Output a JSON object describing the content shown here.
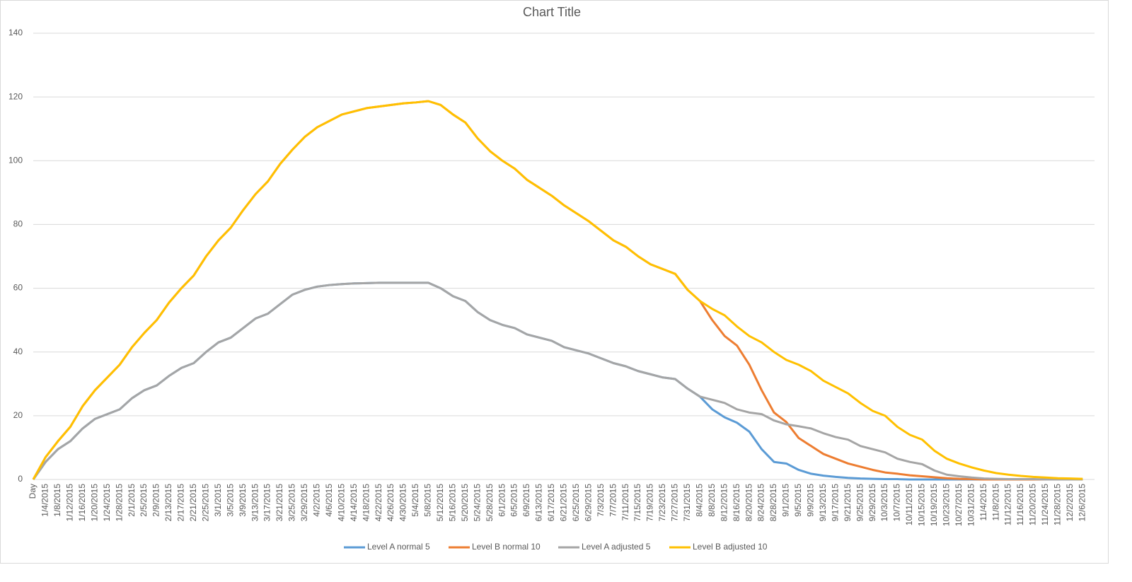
{
  "chart_data": {
    "type": "line",
    "title": "Chart Title",
    "categories": [
      "Day",
      "1/4/2015",
      "1/8/2015",
      "1/12/2015",
      "1/16/2015",
      "1/20/2015",
      "1/24/2015",
      "1/28/2015",
      "2/1/2015",
      "2/5/2015",
      "2/9/2015",
      "2/13/2015",
      "2/17/2015",
      "2/21/2015",
      "2/25/2015",
      "3/1/2015",
      "3/5/2015",
      "3/9/2015",
      "3/13/2015",
      "3/17/2015",
      "3/21/2015",
      "3/25/2015",
      "3/29/2015",
      "4/2/2015",
      "4/6/2015",
      "4/10/2015",
      "4/14/2015",
      "4/18/2015",
      "4/22/2015",
      "4/26/2015",
      "4/30/2015",
      "5/4/2015",
      "5/8/2015",
      "5/12/2015",
      "5/16/2015",
      "5/20/2015",
      "5/24/2015",
      "5/28/2015",
      "6/1/2015",
      "6/5/2015",
      "6/9/2015",
      "6/13/2015",
      "6/17/2015",
      "6/21/2015",
      "6/25/2015",
      "6/29/2015",
      "7/3/2015",
      "7/7/2015",
      "7/11/2015",
      "7/15/2015",
      "7/19/2015",
      "7/23/2015",
      "7/27/2015",
      "7/31/2015",
      "8/4/2015",
      "8/8/2015",
      "8/12/2015",
      "8/16/2015",
      "8/20/2015",
      "8/24/2015",
      "8/28/2015",
      "9/1/2015",
      "9/5/2015",
      "9/9/2015",
      "9/13/2015",
      "9/17/2015",
      "9/21/2015",
      "9/25/2015",
      "9/29/2015",
      "10/3/2015",
      "10/7/2015",
      "10/11/2015",
      "10/15/2015",
      "10/19/2015",
      "10/23/2015",
      "10/27/2015",
      "10/31/2015",
      "11/4/2015",
      "11/8/2015",
      "11/12/2015",
      "11/16/2015",
      "11/20/2015",
      "11/24/2015",
      "11/28/2015",
      "12/2/2015",
      "12/6/2015"
    ],
    "series": [
      {
        "name": "Level A normal 5",
        "color": "#5b9bd5",
        "values": [
          0,
          5.5,
          9.5,
          12,
          16,
          19,
          20.5,
          22,
          25.5,
          28,
          29.5,
          32.5,
          35,
          36.5,
          40,
          43,
          44.5,
          47.5,
          50.5,
          52,
          55,
          58,
          59.5,
          60.5,
          61,
          61.3,
          61.5,
          61.6,
          61.7,
          61.7,
          61.7,
          61.7,
          61.7,
          60,
          57.5,
          56,
          52.5,
          50,
          48.5,
          47.5,
          45.5,
          44.5,
          43.5,
          41.5,
          40.5,
          39.5,
          38,
          36.5,
          35.5,
          34,
          33,
          32,
          31.5,
          28.5,
          26,
          22,
          19.5,
          17.8,
          15,
          9.5,
          5.5,
          5,
          3,
          1.8,
          1.2,
          0.8,
          0.5,
          0.3,
          0.2,
          0.1,
          0.1,
          0,
          0,
          0,
          0,
          0,
          0,
          0,
          0,
          0,
          0,
          0,
          0,
          0,
          0,
          0
        ]
      },
      {
        "name": "Level B normal 10",
        "color": "#ed7d31",
        "values": [
          0,
          7,
          12,
          16.5,
          23,
          28,
          32,
          36,
          41.5,
          46,
          50,
          55.5,
          60,
          64,
          70,
          75,
          79,
          84.5,
          89.5,
          93.5,
          99,
          103.5,
          107.5,
          110.5,
          112.5,
          114.5,
          115.5,
          116.5,
          117,
          117.5,
          118,
          118.3,
          118.7,
          117.5,
          114.5,
          112,
          107,
          103,
          100,
          97.5,
          94,
          91.5,
          89,
          86,
          83.5,
          81,
          78,
          75,
          73,
          70,
          67.5,
          66,
          64.5,
          59.5,
          56,
          50,
          45,
          42,
          36,
          28,
          21,
          18,
          13,
          10.5,
          8,
          6.5,
          5,
          4,
          3,
          2.2,
          1.8,
          1.3,
          1,
          0.7,
          0.4,
          0.2,
          0.1,
          0,
          0,
          0,
          0,
          0,
          0,
          0,
          0,
          0
        ]
      },
      {
        "name": "Level A adjusted 5",
        "color": "#a5a5a5",
        "values": [
          0,
          5.5,
          9.5,
          12,
          16,
          19,
          20.5,
          22,
          25.5,
          28,
          29.5,
          32.5,
          35,
          36.5,
          40,
          43,
          44.5,
          47.5,
          50.5,
          52,
          55,
          58,
          59.5,
          60.5,
          61,
          61.3,
          61.5,
          61.6,
          61.7,
          61.7,
          61.7,
          61.7,
          61.7,
          60,
          57.5,
          56,
          52.5,
          50,
          48.5,
          47.5,
          45.5,
          44.5,
          43.5,
          41.5,
          40.5,
          39.5,
          38,
          36.5,
          35.5,
          34,
          33,
          32,
          31.5,
          28.5,
          26,
          25,
          24,
          22,
          21,
          20.5,
          18.5,
          17.3,
          16.7,
          16,
          14.5,
          13.3,
          12.5,
          10.5,
          9.5,
          8.5,
          6.5,
          5.5,
          4.8,
          2.8,
          1.5,
          1,
          0.6,
          0.3,
          0.2,
          0.1,
          0.1,
          0.1,
          0,
          0,
          0,
          0
        ]
      },
      {
        "name": "Level B adjusted 10",
        "color": "#ffc000",
        "values": [
          0,
          7,
          12,
          16.5,
          23,
          28,
          32,
          36,
          41.5,
          46,
          50,
          55.5,
          60,
          64,
          70,
          75,
          79,
          84.5,
          89.5,
          93.5,
          99,
          103.5,
          107.5,
          110.5,
          112.5,
          114.5,
          115.5,
          116.5,
          117,
          117.5,
          118,
          118.3,
          118.7,
          117.5,
          114.5,
          112,
          107,
          103,
          100,
          97.5,
          94,
          91.5,
          89,
          86,
          83.5,
          81,
          78,
          75,
          73,
          70,
          67.5,
          66,
          64.5,
          59.5,
          56,
          53.5,
          51.5,
          48,
          45,
          43,
          40,
          37.5,
          36,
          34,
          31,
          29,
          27,
          24,
          21.5,
          20,
          16.5,
          14,
          12.5,
          9,
          6.5,
          5,
          3.8,
          2.8,
          2,
          1.5,
          1.1,
          0.8,
          0.6,
          0.4,
          0.3,
          0.2
        ]
      }
    ],
    "ylim": [
      0,
      140
    ],
    "yticks": [
      0,
      20,
      40,
      60,
      80,
      100,
      120,
      140
    ],
    "grid": true,
    "legend": "bottom"
  }
}
